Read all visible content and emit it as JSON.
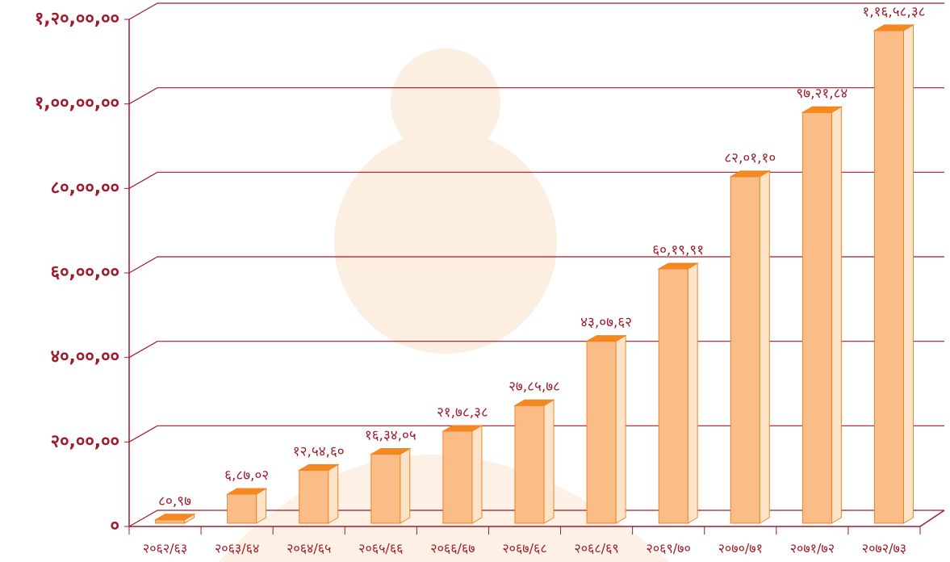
{
  "chart_data": {
    "type": "bar",
    "categories": [
      "२०६२/६३",
      "२०६३/६४",
      "२०६४/६५",
      "२०६५/६६",
      "२०६६/६७",
      "२०६७/६८",
      "२०६८/६९",
      "२०६९/७०",
      "२०७०/७१",
      "२०७१/७२",
      "२०७२/७३"
    ],
    "values": [
      8097,
      68702,
      125460,
      163405,
      217838,
      278578,
      430762,
      601991,
      820110,
      972184,
      1165838
    ],
    "value_labels": [
      "८०,९७",
      "६,८७,०२",
      "१२,५४,६०",
      "१६,३४,०५",
      "२१,७८,३८",
      "२७,८५,७८",
      "४३,०७,६२",
      "६०,१९,९१",
      "८२,०१,१०",
      "९७,२१,८४",
      "१,१६,५८,३८"
    ],
    "color": "#fbbd88",
    "ylim": [
      0,
      1200000
    ],
    "yticks": [
      {
        "value": 0,
        "label": "०"
      },
      {
        "value": 200000,
        "label": "२०,००,००"
      },
      {
        "value": 400000,
        "label": "४०,००,००"
      },
      {
        "value": 600000,
        "label": "६०,००,००"
      },
      {
        "value": 800000,
        "label": "८०,००,००"
      },
      {
        "value": 1000000,
        "label": "१,००,००,००"
      },
      {
        "value": 1200000,
        "label": "१,२०,००,००"
      }
    ],
    "grid": true
  }
}
